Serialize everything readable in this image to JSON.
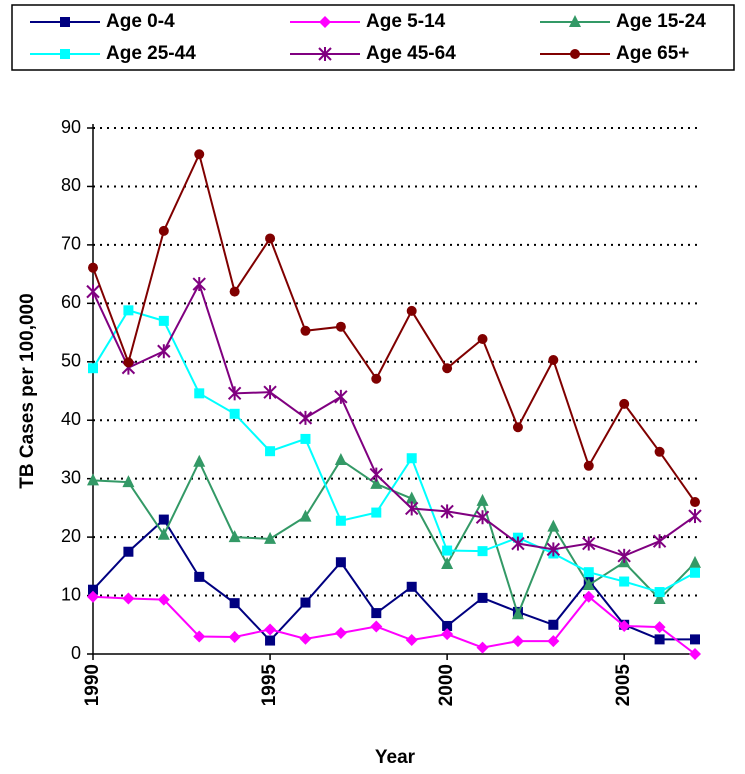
{
  "chart_data": {
    "type": "line",
    "x_label": "Year",
    "y_label": "TB Cases per 100,000",
    "x": [
      1990,
      1991,
      1992,
      1993,
      1994,
      1995,
      1996,
      1997,
      1998,
      1999,
      2000,
      2001,
      2002,
      2003,
      2004,
      2005,
      2006,
      2007
    ],
    "xlim": [
      1990,
      2007
    ],
    "xticks": [
      1990,
      1995,
      2000,
      2005
    ],
    "ylim": [
      0,
      90
    ],
    "yticks": [
      0,
      10,
      20,
      30,
      40,
      50,
      60,
      70,
      80,
      90
    ],
    "grid": true,
    "legend": "top",
    "series": [
      {
        "name": "Age 0-4",
        "color": "#000080",
        "marker": "square",
        "values": [
          11,
          17.5,
          23,
          13.2,
          8.7,
          2.3,
          8.8,
          15.7,
          7,
          11.5,
          4.8,
          9.6,
          7.2,
          5,
          12.6,
          5,
          2.5,
          2.5
        ]
      },
      {
        "name": "Age 5-14",
        "color": "#ff00ff",
        "marker": "diamond",
        "values": [
          9.8,
          9.5,
          9.3,
          3,
          2.9,
          4.2,
          2.6,
          3.6,
          4.7,
          2.4,
          3.4,
          1.1,
          2.2,
          2.2,
          9.8,
          4.8,
          4.6,
          0
        ]
      },
      {
        "name": "Age 15-24",
        "color": "#339966",
        "marker": "triangle",
        "values": [
          29.7,
          29.4,
          20.4,
          32.9,
          20,
          19.7,
          23.5,
          33.2,
          29.1,
          26.6,
          15.4,
          26.2,
          6.8,
          21.8,
          11.8,
          15.7,
          9.4,
          15.6
        ]
      },
      {
        "name": "Age 25-44",
        "color": "#00ffff",
        "marker": "square",
        "values": [
          48.9,
          58.8,
          57,
          44.6,
          41.1,
          34.7,
          36.8,
          22.8,
          24.2,
          33.5,
          17.7,
          17.6,
          19.9,
          17.2,
          14,
          12.4,
          10.6,
          13.9
        ]
      },
      {
        "name": "Age 45-64",
        "color": "#800080",
        "marker": "asterisk",
        "values": [
          62,
          49,
          51.8,
          63.3,
          44.6,
          44.8,
          40.4,
          44,
          30.7,
          24.9,
          24.4,
          23.4,
          18.9,
          17.9,
          18.9,
          16.8,
          19.3,
          23.6
        ]
      },
      {
        "name": "Age 65+",
        "color": "#800000",
        "marker": "circle",
        "values": [
          66.1,
          49.9,
          72.4,
          85.5,
          62,
          71.1,
          55.3,
          56,
          47.1,
          58.7,
          48.9,
          53.9,
          38.8,
          50.3,
          32.2,
          42.8,
          34.6,
          26
        ]
      }
    ]
  }
}
